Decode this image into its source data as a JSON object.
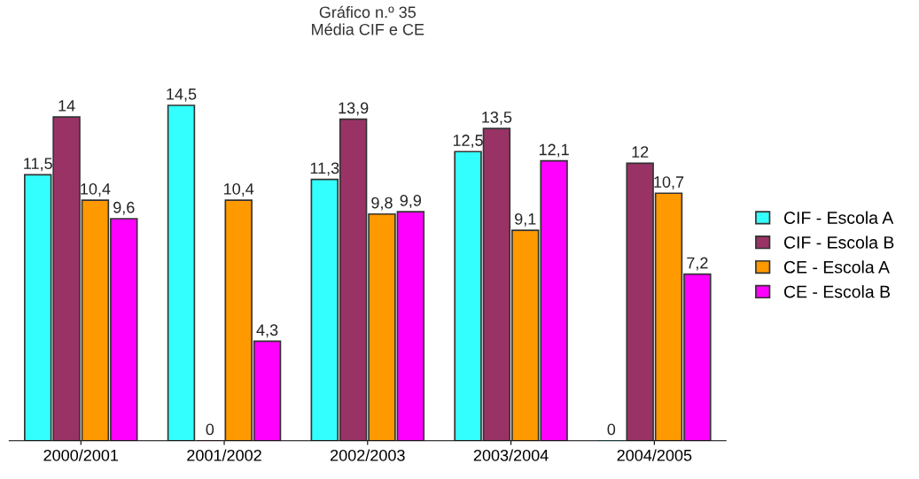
{
  "chart_data": {
    "type": "bar",
    "title": "Gráfico n.º 35\nMédia CIF e CE",
    "categories": [
      "2000/2001",
      "2001/2002",
      "2002/2003",
      "2003/2004",
      "2004/2005"
    ],
    "series": [
      {
        "name": "CIF - Escola A",
        "color": "#33ffff",
        "values": [
          11.5,
          14.5,
          11.3,
          12.5,
          0
        ],
        "value_labels": [
          "11,5",
          "14,5",
          "11,3",
          "12,5",
          "0"
        ]
      },
      {
        "name": "CIF - Escola B",
        "color": "#993366",
        "values": [
          14,
          0,
          13.9,
          13.5,
          12
        ],
        "value_labels": [
          "14",
          "0",
          "13,9",
          "13,5",
          "12"
        ]
      },
      {
        "name": "CE - Escola A",
        "color": "#ff9900",
        "values": [
          10.4,
          10.4,
          9.8,
          9.1,
          10.7
        ],
        "value_labels": [
          "10,4",
          "10,4",
          "9,8",
          "9,1",
          "10,7"
        ]
      },
      {
        "name": "CE - Escola B",
        "color": "#ff00ff",
        "values": [
          9.6,
          4.3,
          9.9,
          12.1,
          7.2
        ],
        "value_labels": [
          "9,6",
          "4,3",
          "9,9",
          "12,1",
          "7,2"
        ]
      }
    ],
    "legend": "right",
    "grid": false
  }
}
